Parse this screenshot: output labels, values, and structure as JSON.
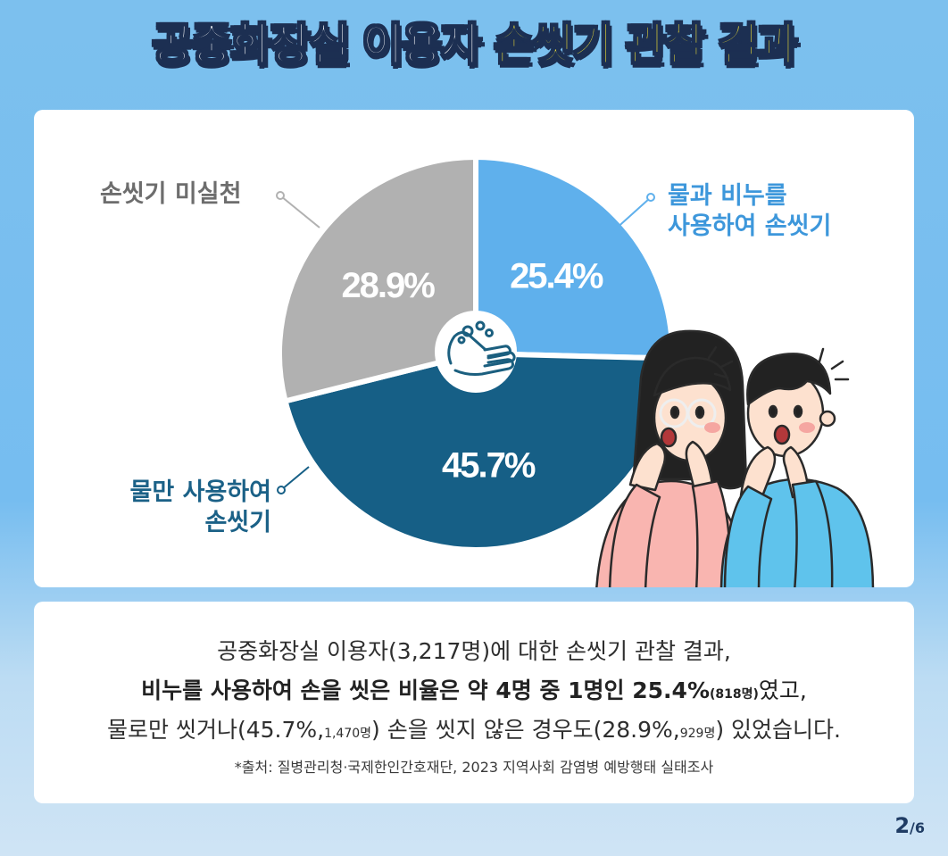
{
  "title": {
    "part1": "공중화장실 이용자",
    "part2": "손씻기 관찰 결과"
  },
  "chart_data": {
    "type": "pie",
    "categories": [
      "물과 비누를 사용하여 손씻기",
      "물만 사용하여 손씻기",
      "손씻기 미실천"
    ],
    "values": [
      25.4,
      45.7,
      28.9
    ],
    "value_labels": [
      "25.4%",
      "45.7%",
      "28.9%"
    ],
    "colors": [
      "#5fb0ec",
      "#165f86",
      "#b1b1b1"
    ],
    "labels": {
      "soap": [
        "물과 비누를",
        "사용하여 손씻기"
      ],
      "water": [
        "물만 사용하여",
        "손씻기"
      ],
      "none": [
        "손씻기 미실천"
      ]
    },
    "center_icon": "hand-washing-icon"
  },
  "illustration": [
    "surprised-woman",
    "surprised-man"
  ],
  "note": {
    "line1": "공중화장실 이용자(3,217명)에 대한 손씻기 관찰 결과,",
    "line2_main": "비누를 사용하여 손을 씻은 비율은 약 4명 중 1명인 25.4%",
    "line2_small": "(818명)",
    "line2_end": "였고,",
    "line3_a": "물로만 씻거나(45.7%,",
    "line3_b_small": "1,470명",
    "line3_c": ") 손을 씻지 않은 경우도(28.9%,",
    "line3_d_small": "929명",
    "line3_e": ") 있었습니다.",
    "source": "*출처: 질병관리청·국제한인간호재단, 2023 지역사회 감염병 예방행태 실태조사"
  },
  "page": {
    "current": "2",
    "total": "/6"
  }
}
